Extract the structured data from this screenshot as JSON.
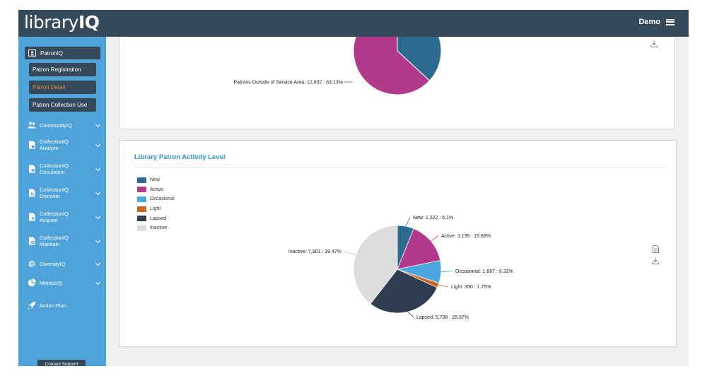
{
  "app": {
    "logo": "libraryIQ",
    "logo_part1": "library",
    "logo_part2": "IQ",
    "user_label": "Demo"
  },
  "sidebar": {
    "section": "PatronIQ",
    "subitems": [
      "Patron Registration",
      "Patron Detail",
      "Patron Collection Use"
    ],
    "active_subitem": "Patron Detail",
    "items": [
      {
        "line1": "CommunityIQ",
        "line2": "",
        "icon": "people-icon"
      },
      {
        "line1": "CollectionIQ",
        "line2": "Analyze",
        "icon": "document-icon"
      },
      {
        "line1": "CollectionIQ",
        "line2": "Circulation",
        "icon": "document-icon"
      },
      {
        "line1": "CollectionIQ",
        "line2": "Discover",
        "icon": "document-search-icon"
      },
      {
        "line1": "CollectionIQ",
        "line2": "Acquire",
        "icon": "document-plus-icon"
      },
      {
        "line1": "CollectionIQ",
        "line2": "Maintain",
        "icon": "document-gear-icon"
      },
      {
        "line1": "DiversityIQ",
        "line2": "",
        "icon": "fingerprint-icon"
      },
      {
        "line1": "MetricsIQ",
        "line2": "",
        "icon": "pie-chart-icon"
      },
      {
        "line1": "Action Plan",
        "line2": "",
        "icon": "rocket-icon"
      }
    ],
    "contact_support": "Contact Support"
  },
  "card1": {
    "label": "Patrons Outside of Service Area: 12,637 : 63.13%"
  },
  "card2": {
    "title": "Library Patron Activity Level"
  },
  "chart_data": [
    {
      "type": "pie",
      "title": "",
      "partially_visible": true,
      "slices": [
        {
          "label": "Patrons Outside of Service Area",
          "count": 12637,
          "percent": 63.13,
          "color": "#b23a8c"
        },
        {
          "label": "",
          "count": null,
          "percent": 36.87,
          "color": "#2c6b8f"
        }
      ]
    },
    {
      "type": "pie",
      "title": "Library Patron Activity Level",
      "legend_position": "top-left",
      "legend": [
        "New",
        "Active",
        "Occasional",
        "Light",
        "Lapsed",
        "Inactive"
      ],
      "slices": [
        {
          "label": "New",
          "count": 1222,
          "percent": 6.1,
          "display": "New: 1,222 : 6.1%",
          "color": "#2c6b8f"
        },
        {
          "label": "Active",
          "count": 3139,
          "percent": 15.68,
          "display": "Active: 3,139 : 15.68%",
          "color": "#b23a8c"
        },
        {
          "label": "Occasional",
          "count": 1667,
          "percent": 8.33,
          "display": "Occasional: 1,667 : 8.33%",
          "color": "#4aa6dc"
        },
        {
          "label": "Light",
          "count": 350,
          "percent": 1.75,
          "display": "Light: 350 : 1.75%",
          "color": "#c8641f"
        },
        {
          "label": "Lapsed",
          "count": 5738,
          "percent": 28.67,
          "display": "Lapsed: 5,738 : 28.67%",
          "color": "#2e3e50"
        },
        {
          "label": "Inactive",
          "count": 7901,
          "percent": 39.47,
          "display": "Inactive: 7,901 : 39.47%",
          "color": "#dcdcdc"
        }
      ]
    }
  ]
}
